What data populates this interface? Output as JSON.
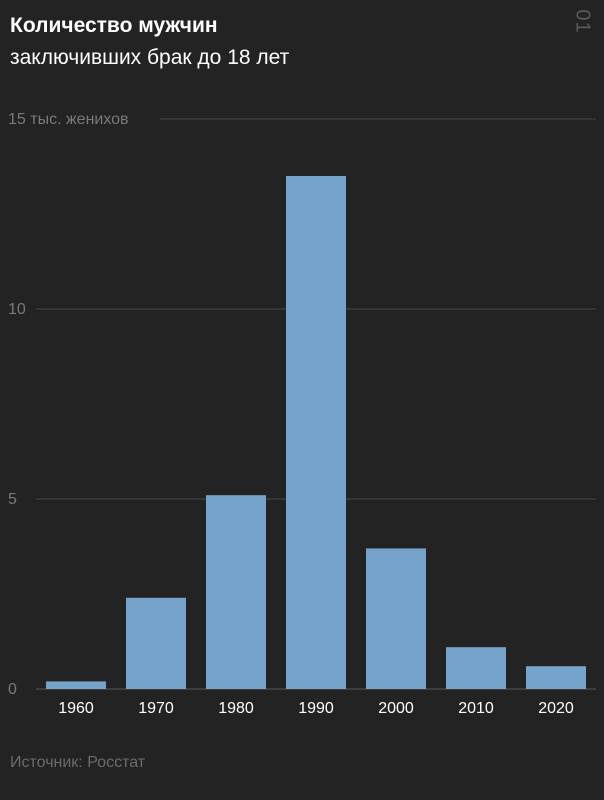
{
  "header": {
    "title_line1": "Количество мужчин",
    "title_line2": "заключивших брак до 18 лет",
    "page_number": "01"
  },
  "footer": {
    "source": "Источник: Росстат"
  },
  "colors": {
    "background": "#232323",
    "bar": "#76a3c9",
    "grid": "#4a4a4a",
    "tick_text": "#7a7a7a",
    "category_text": "#ffffff"
  },
  "chart_data": {
    "type": "bar",
    "title": "Количество мужчин заключивших брак до 18 лет",
    "ylabel": "",
    "categories": [
      "1960",
      "1970",
      "1980",
      "1990",
      "2000",
      "2010",
      "2020"
    ],
    "values": [
      0.2,
      2.4,
      5.1,
      13.5,
      3.7,
      1.1,
      0.6
    ],
    "ylim": [
      0,
      15
    ],
    "yticks": [
      {
        "value": 0,
        "label": "0"
      },
      {
        "value": 5,
        "label": "5"
      },
      {
        "value": 10,
        "label": "10"
      },
      {
        "value": 15,
        "label": "15 тыс. женихов"
      }
    ],
    "grid": true,
    "legend": "none"
  }
}
